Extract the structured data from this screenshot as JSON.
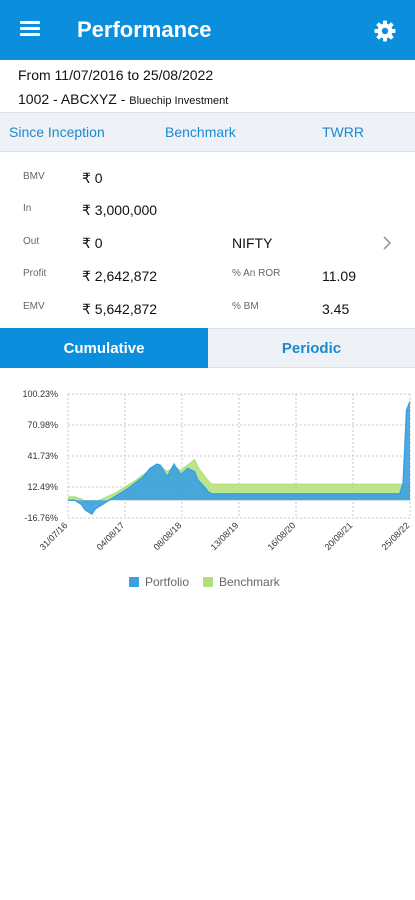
{
  "appbar": {
    "title": "Performance",
    "menu_icon": "hamburger-menu-icon",
    "settings_icon": "gear-icon",
    "color": "#0b8fdc"
  },
  "info": {
    "date_range": "From 11/07/2016 to 25/08/2022",
    "portfolio_code": "1002 - ABCXYZ - ",
    "portfolio_name": "Bluechip Investment"
  },
  "tabs": {
    "since_inception": "Since Inception",
    "benchmark": "Benchmark",
    "twrr": "TWRR"
  },
  "metrics": {
    "bmv_label": "BMV",
    "bmv_value": "₹ 0",
    "in_label": "In",
    "in_value": "₹ 3,000,000",
    "out_label": "Out",
    "out_value": "₹ 0",
    "profit_label": "Profit",
    "profit_value": "₹ 2,642,872",
    "emv_label": "EMV",
    "emv_value": "₹ 5,642,872",
    "benchmark_name": "NIFTY",
    "ror_label": "% An ROR",
    "ror_value": "11.09",
    "bm_label": "% BM",
    "bm_value": "3.45"
  },
  "segments": {
    "cumulative": "Cumulative",
    "periodic": "Periodic"
  },
  "chart_data": {
    "type": "area",
    "y_ticks": [
      "100.23%",
      "70.98%",
      "41.73%",
      "12.49%",
      "-16.76%"
    ],
    "y_tick_values": [
      100.23,
      70.98,
      41.73,
      12.49,
      -16.76
    ],
    "ylim": [
      -16.76,
      100.23
    ],
    "x_ticks": [
      "31/07/16",
      "04/08/17",
      "08/08/18",
      "13/08/19",
      "16/08/20",
      "20/08/21",
      "25/08/22"
    ],
    "xlim": [
      0,
      100
    ],
    "grid": true,
    "legend_position": "bottom",
    "series": [
      {
        "name": "Portfolio",
        "color": "#3aa0e0",
        "x": [
          0,
          2,
          4,
          5,
          7,
          8,
          10,
          12,
          14,
          16,
          18,
          20,
          22,
          24,
          26,
          27,
          29,
          31,
          33,
          35,
          37,
          38,
          40,
          41,
          42,
          97,
          98,
          99,
          100
        ],
        "values": [
          0,
          0,
          -4,
          -9,
          -13,
          -8,
          -4,
          0,
          4,
          8,
          12,
          17,
          22,
          30,
          34,
          33,
          22,
          34,
          24,
          30,
          27,
          19,
          12,
          8,
          6,
          6,
          16,
          85,
          93
        ]
      },
      {
        "name": "Benchmark",
        "color": "#b3e07a",
        "x": [
          0,
          2,
          4,
          5,
          7,
          8,
          10,
          12,
          14,
          16,
          18,
          20,
          22,
          24,
          26,
          27,
          29,
          31,
          33,
          35,
          37,
          38,
          40,
          41,
          42,
          97,
          98,
          99,
          100
        ],
        "values": [
          3,
          3,
          1,
          -2,
          -5,
          -2,
          1,
          4,
          7,
          11,
          15,
          19,
          24,
          28,
          31,
          32,
          27,
          31,
          28,
          33,
          38,
          31,
          22,
          18,
          15,
          15,
          15,
          15,
          15
        ]
      }
    ]
  }
}
